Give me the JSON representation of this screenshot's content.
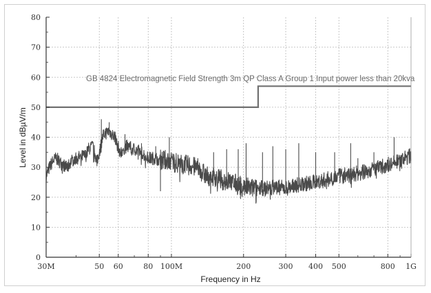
{
  "chart_data": {
    "type": "line",
    "title": "",
    "xlabel": "Frequency in Hz",
    "ylabel": "Level in dBµV/m",
    "x_scale": "log",
    "xlim": [
      30000000,
      1000000000
    ],
    "ylim": [
      0,
      80
    ],
    "grid": true,
    "x_ticks": [
      {
        "value": 30000000,
        "label": "30M"
      },
      {
        "value": 50000000,
        "label": "50"
      },
      {
        "value": 60000000,
        "label": "60"
      },
      {
        "value": 80000000,
        "label": "80"
      },
      {
        "value": 100000000,
        "label": "100M"
      },
      {
        "value": 200000000,
        "label": "200"
      },
      {
        "value": 300000000,
        "label": "300"
      },
      {
        "value": 400000000,
        "label": "400"
      },
      {
        "value": 500000000,
        "label": "500"
      },
      {
        "value": 800000000,
        "label": "800"
      },
      {
        "value": 1000000000,
        "label": "1G"
      }
    ],
    "y_ticks": [
      0,
      10,
      20,
      30,
      40,
      50,
      60,
      70,
      80
    ],
    "limit_line": {
      "label": "GB 4824 Electromagnetic Field Strength 3m QP Class A Group 1 Input power less than 20kva",
      "x": [
        30000000,
        230000000,
        230000000,
        1000000000
      ],
      "y": [
        50,
        50,
        57,
        57
      ],
      "color": "#707070"
    },
    "series": [
      {
        "color": "#4a4a4a",
        "x": [
          30000000,
          31000000,
          32000000,
          33000000,
          35000000,
          37000000,
          38000000,
          40000000,
          42000000,
          44000000,
          45000000,
          47000000,
          49000000,
          52000000,
          55000000,
          58000000,
          61000000,
          65000000,
          70000000,
          75000000,
          80000000,
          85000000,
          90000000,
          95000000,
          100000000,
          110000000,
          120000000,
          130000000,
          140000000,
          150000000,
          160000000,
          170000000,
          180000000,
          190000000,
          200000000,
          215000000,
          230000000,
          250000000,
          270000000,
          300000000,
          330000000,
          360000000,
          400000000,
          450000000,
          500000000,
          550000000,
          600000000,
          650000000,
          700000000,
          750000000,
          800000000,
          850000000,
          900000000,
          950000000,
          1000000000
        ],
        "y": [
          27,
          30,
          32,
          33,
          31,
          30,
          32,
          33,
          33.5,
          34,
          36,
          37,
          32,
          41,
          42,
          40,
          35,
          37,
          36,
          35,
          33,
          33,
          32.5,
          32.5,
          32,
          31,
          30.5,
          29.5,
          27,
          27,
          26,
          25.5,
          25,
          24,
          23.5,
          23,
          23,
          23,
          23.5,
          23,
          24,
          24.5,
          25,
          26,
          27,
          27.5,
          28,
          28.5,
          29.5,
          30,
          31,
          31.5,
          32,
          33,
          34
        ],
        "spikes": [
          {
            "x": 51000000,
            "y": 46
          },
          {
            "x": 55000000,
            "y": 45
          },
          {
            "x": 64000000,
            "y": 41
          },
          {
            "x": 75000000,
            "y": 38
          },
          {
            "x": 86000000,
            "y": 37
          },
          {
            "x": 90000000,
            "y": 22
          },
          {
            "x": 98000000,
            "y": 40
          },
          {
            "x": 150000000,
            "y": 35
          },
          {
            "x": 170000000,
            "y": 36
          },
          {
            "x": 190000000,
            "y": 36
          },
          {
            "x": 205000000,
            "y": 38
          },
          {
            "x": 240000000,
            "y": 35
          },
          {
            "x": 265000000,
            "y": 37
          },
          {
            "x": 300000000,
            "y": 36
          },
          {
            "x": 340000000,
            "y": 38
          },
          {
            "x": 400000000,
            "y": 35
          },
          {
            "x": 480000000,
            "y": 35
          },
          {
            "x": 560000000,
            "y": 38
          },
          {
            "x": 600000000,
            "y": 33
          },
          {
            "x": 700000000,
            "y": 35
          },
          {
            "x": 850000000,
            "y": 40
          }
        ]
      }
    ]
  }
}
